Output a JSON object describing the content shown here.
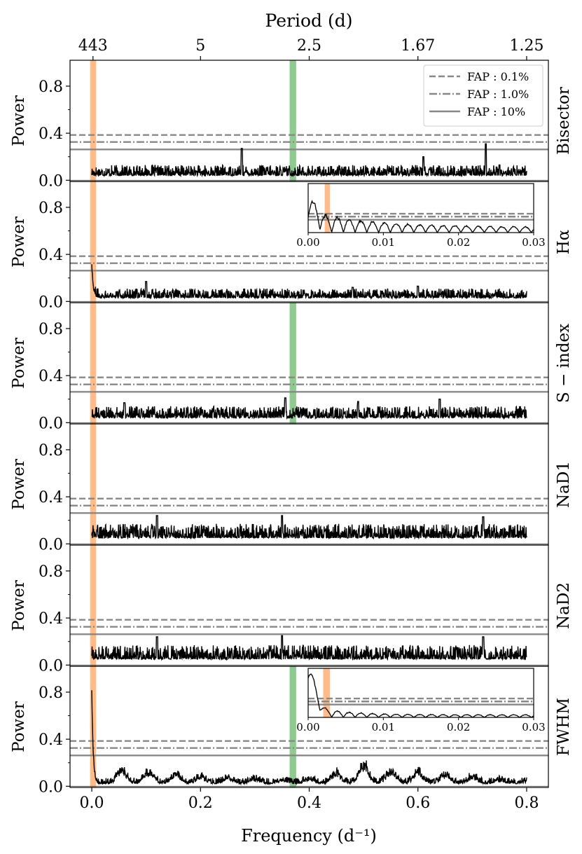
{
  "chart_data": {
    "type": "line",
    "xlabel": "Frequency (d⁻¹)",
    "top_xlabel": "Period (d)",
    "ylabel": "Power",
    "xlim": [
      -0.04,
      0.84
    ],
    "ylim": [
      -0.01,
      1.02
    ],
    "x_ticks": [
      "0.0",
      "0.2",
      "0.4",
      "0.6",
      "0.8"
    ],
    "x_tick_values": [
      0.0,
      0.2,
      0.4,
      0.6,
      0.8
    ],
    "y_ticks": [
      "0.0",
      "0.4",
      "0.8"
    ],
    "y_tick_values": [
      0.0,
      0.4,
      0.8
    ],
    "top_ticks": [
      {
        "label": "443",
        "freq": 0.00226
      },
      {
        "label": "5",
        "freq": 0.2
      },
      {
        "label": "2.5",
        "freq": 0.4
      },
      {
        "label": "1.67",
        "freq": 0.6
      },
      {
        "label": "1.25",
        "freq": 0.8
      }
    ],
    "highlight_bands": [
      {
        "name": "orange",
        "x_from": -0.003,
        "x_to": 0.008,
        "color": "#ffbb88"
      },
      {
        "name": "green",
        "x_from": 0.364,
        "x_to": 0.376,
        "color": "#8fca8f"
      }
    ],
    "fap_levels": [
      {
        "label": "FAP :  0.1%",
        "value": 0.385,
        "style": "dashed"
      },
      {
        "label": "FAP :  1.0%",
        "value": 0.325,
        "style": "dashdot"
      },
      {
        "label": "FAP :  10%",
        "value": 0.262,
        "style": "solid"
      }
    ],
    "legend_position": "top-right of first panel",
    "panels": [
      {
        "name": "Bisector",
        "green_band": true,
        "noise": 0.09,
        "base": 0.04,
        "start_peak": 0.0,
        "peaks": [
          {
            "x": 0.276,
            "y": 0.27
          },
          {
            "x": 0.725,
            "y": 0.31
          },
          {
            "x": 0.61,
            "y": 0.2
          },
          {
            "x": 0.75,
            "y": 0.13
          }
        ]
      },
      {
        "name": "Hα",
        "green_band": false,
        "noise": 0.08,
        "base": 0.03,
        "start_peak": 0.31,
        "peaks": [
          {
            "x": 0.1,
            "y": 0.17
          },
          {
            "x": 0.48,
            "y": 0.12
          },
          {
            "x": 0.6,
            "y": 0.13
          }
        ],
        "inset": {
          "xlim": [
            0,
            0.03
          ],
          "x_ticks": [
            "0.00",
            "0.01",
            "0.02",
            "0.03"
          ],
          "x_tick_values": [
            0,
            0.01,
            0.02,
            0.03
          ],
          "band": [
            0.0022,
            0.0029
          ]
        }
      },
      {
        "name": "S − index",
        "green_band": true,
        "noise": 0.1,
        "base": 0.04,
        "start_peak": 0.0,
        "peaks": [
          {
            "x": 0.356,
            "y": 0.21
          },
          {
            "x": 0.64,
            "y": 0.2
          },
          {
            "x": 0.49,
            "y": 0.18
          },
          {
            "x": 0.06,
            "y": 0.17
          }
        ]
      },
      {
        "name": "NaD1",
        "green_band": false,
        "noise": 0.12,
        "base": 0.05,
        "start_peak": 0.0,
        "peaks": [
          {
            "x": 0.12,
            "y": 0.24
          },
          {
            "x": 0.35,
            "y": 0.24
          },
          {
            "x": 0.72,
            "y": 0.23
          }
        ]
      },
      {
        "name": "NaD2",
        "green_band": false,
        "noise": 0.12,
        "base": 0.05,
        "start_peak": 0.0,
        "peaks": [
          {
            "x": 0.12,
            "y": 0.24
          },
          {
            "x": 0.35,
            "y": 0.25
          },
          {
            "x": 0.72,
            "y": 0.24
          }
        ]
      },
      {
        "name": "FWHM",
        "green_band": true,
        "noise": 0.05,
        "base": 0.02,
        "start_peak": 0.8,
        "bumps": [
          0.055,
          0.105,
          0.155,
          0.2,
          0.25,
          0.3,
          0.35,
          0.4,
          0.45,
          0.5,
          0.55,
          0.6,
          0.65,
          0.7,
          0.75,
          0.8
        ],
        "bump_heights": [
          0.14,
          0.12,
          0.09,
          0.06,
          0.05,
          0.04,
          0.03,
          0.04,
          0.11,
          0.19,
          0.13,
          0.12,
          0.08,
          0.06,
          0.03,
          0.02
        ],
        "inset": {
          "xlim": [
            0,
            0.03
          ],
          "x_ticks": [
            "0.00",
            "0.01",
            "0.02",
            "0.03"
          ],
          "x_tick_values": [
            0,
            0.01,
            0.02,
            0.03
          ],
          "band": [
            0.002,
            0.0029
          ]
        }
      }
    ]
  }
}
